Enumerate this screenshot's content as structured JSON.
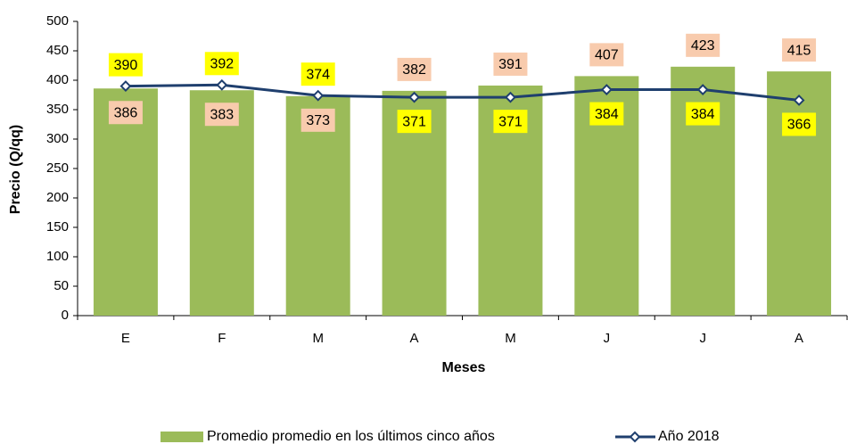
{
  "chart_data": {
    "type": "bar_line",
    "xlabel": "Meses",
    "ylabel": "Precio (Q/qq)",
    "categories": [
      "E",
      "F",
      "M",
      "A",
      "M",
      "J",
      "J",
      "A"
    ],
    "series": [
      {
        "name": "Promedio promedio en los  últimos cinco años",
        "type": "bar",
        "color": "#9bbb59",
        "label_color": "#f8cbad",
        "values": [
          386,
          383,
          373,
          382,
          391,
          407,
          423,
          415
        ]
      },
      {
        "name": "Año 2018",
        "type": "line",
        "color": "#1f3f6e",
        "label_color": "#ffff00",
        "values": [
          390,
          392,
          374,
          371,
          371,
          384,
          384,
          366
        ]
      }
    ],
    "ylim": [
      0,
      500
    ],
    "yticks": [
      0,
      50,
      100,
      150,
      200,
      250,
      300,
      350,
      400,
      450,
      500
    ],
    "grid": false,
    "legend": "bottom"
  }
}
